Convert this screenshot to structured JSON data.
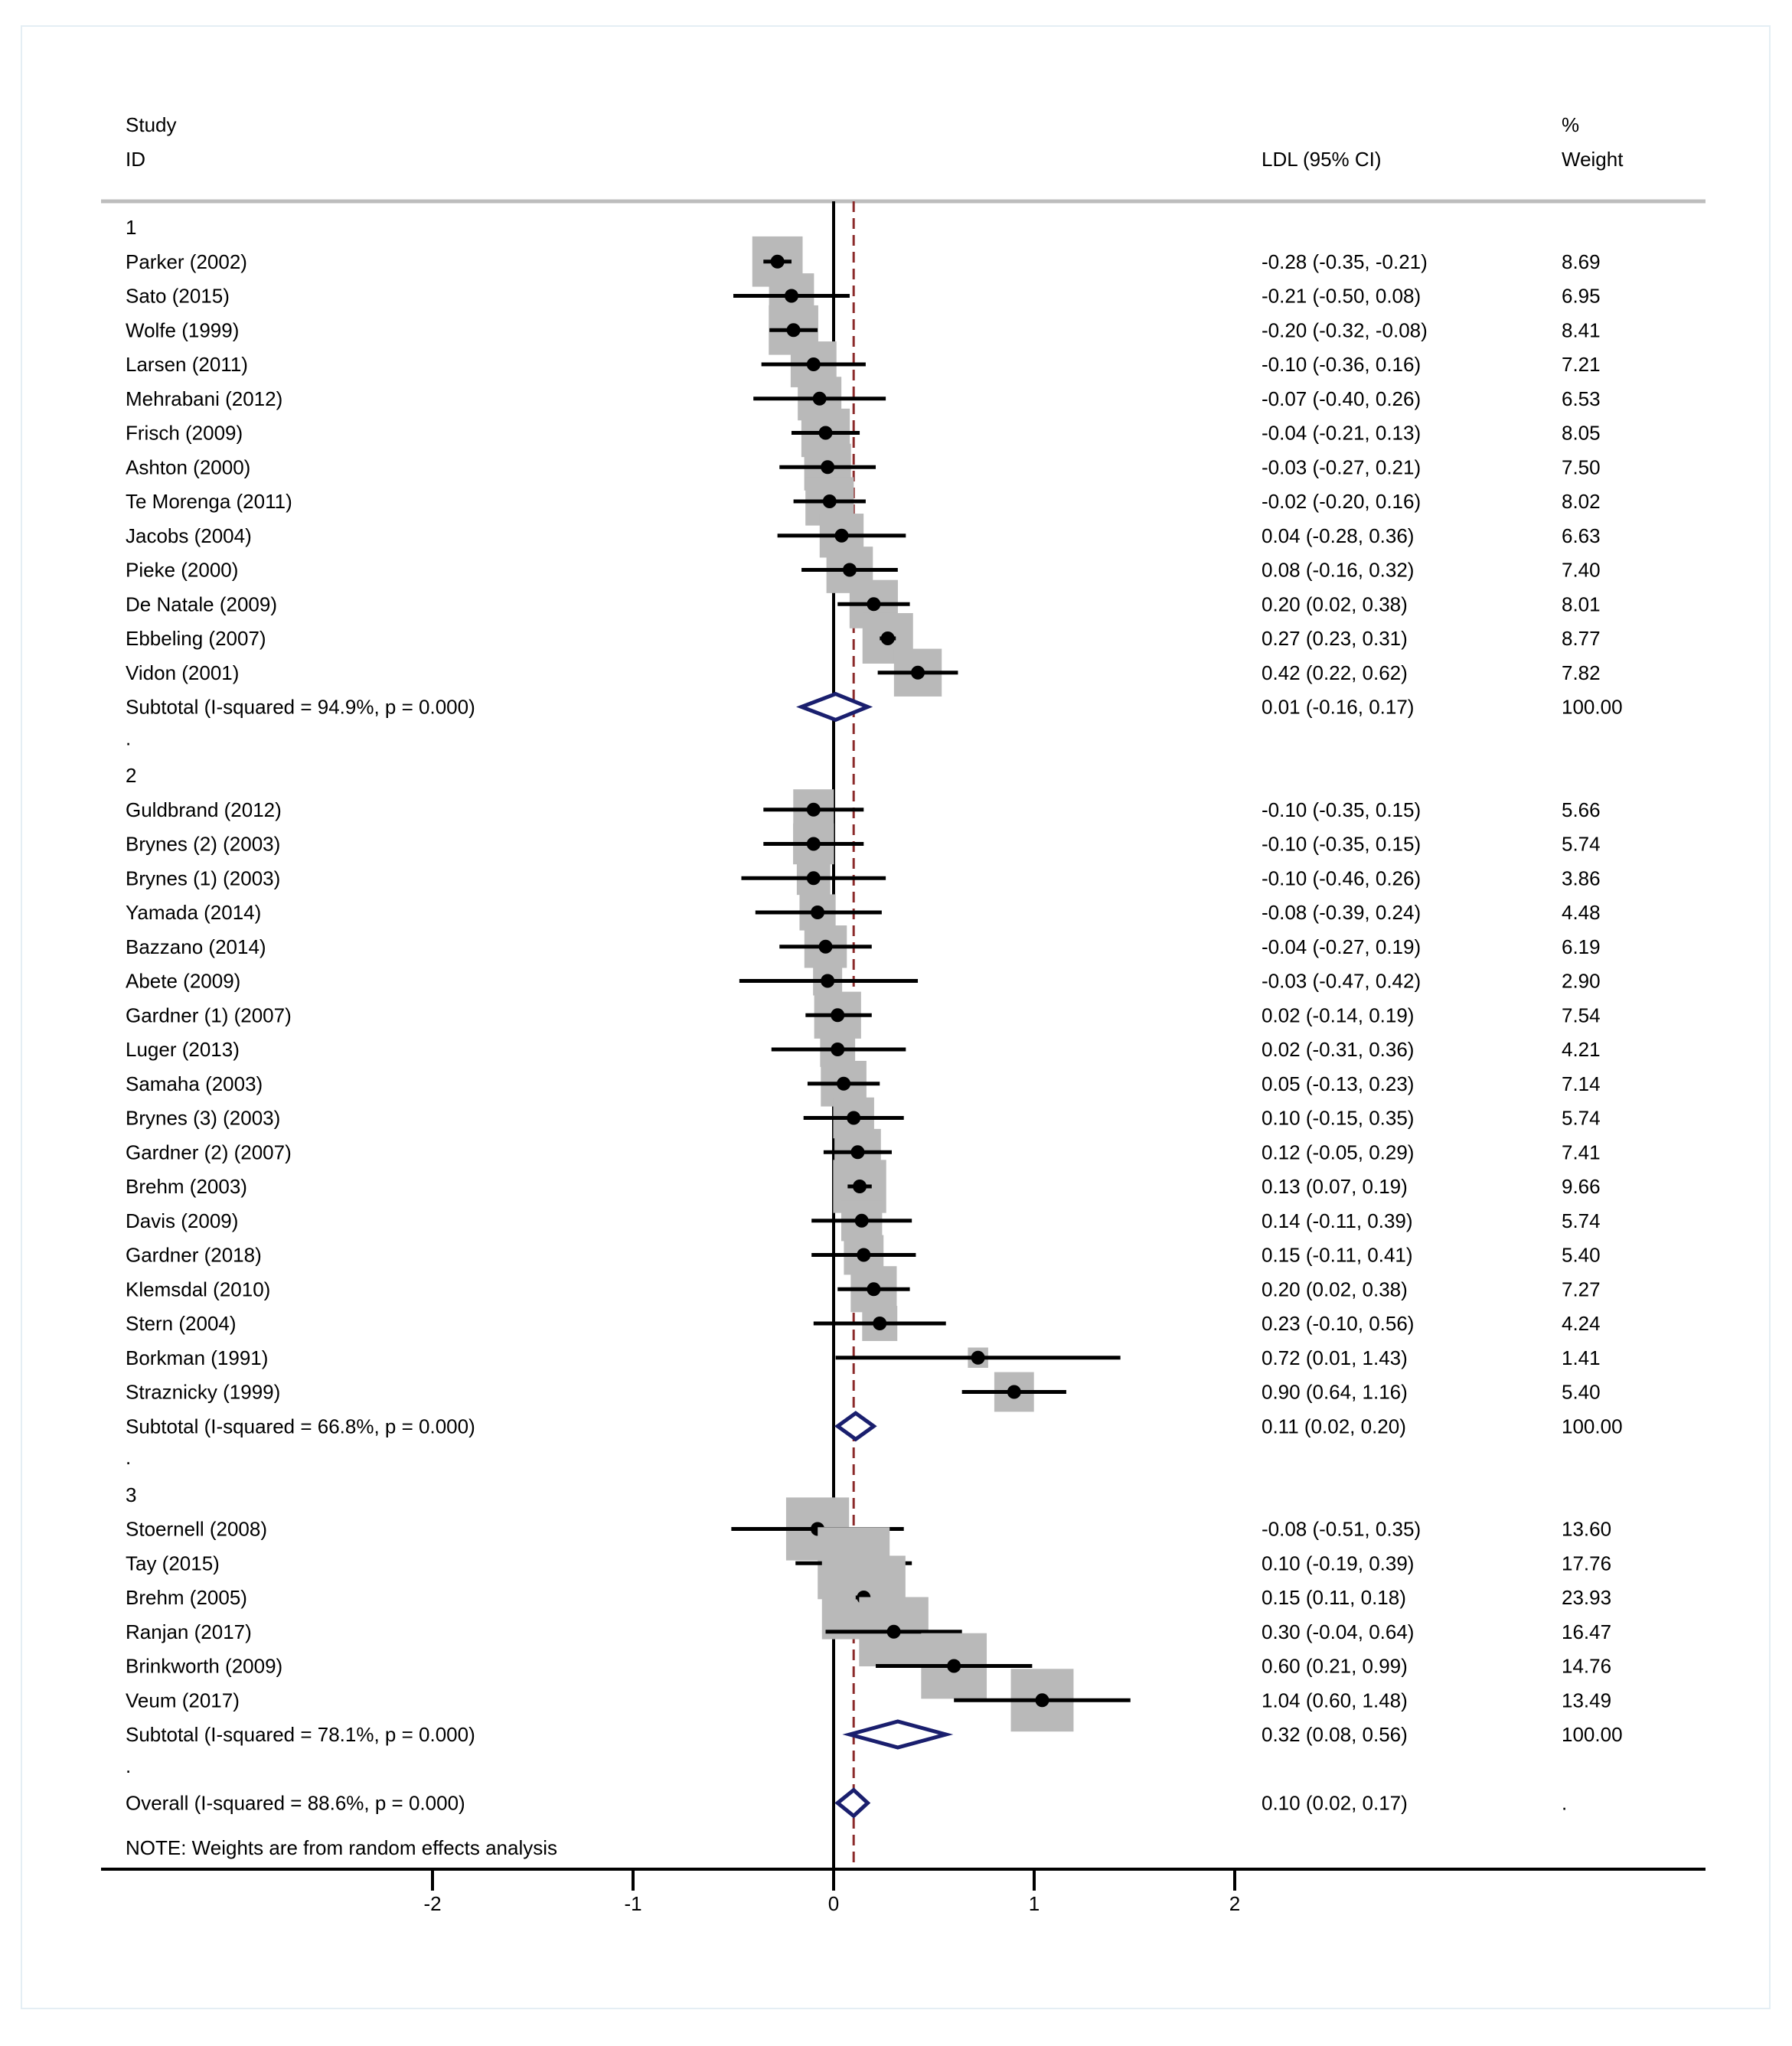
{
  "chart_data": {
    "type": "forest",
    "headers": {
      "study_line1": "Study",
      "study_line2": "ID",
      "estimate": "LDL (95% CI)",
      "weight_line1": "%",
      "weight_line2": "Weight"
    },
    "x_axis": {
      "range": [
        -2,
        2
      ],
      "ticks": [
        -2,
        -1,
        0,
        1,
        2
      ],
      "tick_labels": [
        "-2",
        "-1",
        "0",
        "1",
        "2"
      ]
    },
    "overall_reference": 0.1,
    "groups": [
      {
        "label": "1",
        "studies": [
          {
            "name": "Parker (2002)",
            "est": -0.28,
            "lo": -0.35,
            "hi": -0.21,
            "ci_text": "-0.28 (-0.35, -0.21)",
            "weight": 8.69,
            "weight_text": "8.69"
          },
          {
            "name": "Sato (2015)",
            "est": -0.21,
            "lo": -0.5,
            "hi": 0.08,
            "ci_text": "-0.21 (-0.50, 0.08)",
            "weight": 6.95,
            "weight_text": "6.95"
          },
          {
            "name": "Wolfe (1999)",
            "est": -0.2,
            "lo": -0.32,
            "hi": -0.08,
            "ci_text": "-0.20 (-0.32, -0.08)",
            "weight": 8.41,
            "weight_text": "8.41"
          },
          {
            "name": "Larsen (2011)",
            "est": -0.1,
            "lo": -0.36,
            "hi": 0.16,
            "ci_text": "-0.10 (-0.36, 0.16)",
            "weight": 7.21,
            "weight_text": "7.21"
          },
          {
            "name": "Mehrabani (2012)",
            "est": -0.07,
            "lo": -0.4,
            "hi": 0.26,
            "ci_text": "-0.07 (-0.40, 0.26)",
            "weight": 6.53,
            "weight_text": "6.53"
          },
          {
            "name": "Frisch (2009)",
            "est": -0.04,
            "lo": -0.21,
            "hi": 0.13,
            "ci_text": "-0.04 (-0.21, 0.13)",
            "weight": 8.05,
            "weight_text": "8.05"
          },
          {
            "name": "Ashton (2000)",
            "est": -0.03,
            "lo": -0.27,
            "hi": 0.21,
            "ci_text": "-0.03 (-0.27, 0.21)",
            "weight": 7.5,
            "weight_text": "7.50"
          },
          {
            "name": "Te Morenga (2011)",
            "est": -0.02,
            "lo": -0.2,
            "hi": 0.16,
            "ci_text": "-0.02 (-0.20, 0.16)",
            "weight": 8.02,
            "weight_text": "8.02"
          },
          {
            "name": "Jacobs (2004)",
            "est": 0.04,
            "lo": -0.28,
            "hi": 0.36,
            "ci_text": "0.04 (-0.28, 0.36)",
            "weight": 6.63,
            "weight_text": "6.63"
          },
          {
            "name": "Pieke (2000)",
            "est": 0.08,
            "lo": -0.16,
            "hi": 0.32,
            "ci_text": "0.08 (-0.16, 0.32)",
            "weight": 7.4,
            "weight_text": "7.40"
          },
          {
            "name": "De Natale (2009)",
            "est": 0.2,
            "lo": 0.02,
            "hi": 0.38,
            "ci_text": "0.20 (0.02, 0.38)",
            "weight": 8.01,
            "weight_text": "8.01"
          },
          {
            "name": "Ebbeling (2007)",
            "est": 0.27,
            "lo": 0.23,
            "hi": 0.31,
            "ci_text": "0.27 (0.23, 0.31)",
            "weight": 8.77,
            "weight_text": "8.77"
          },
          {
            "name": "Vidon (2001)",
            "est": 0.42,
            "lo": 0.22,
            "hi": 0.62,
            "ci_text": "0.42 (0.22, 0.62)",
            "weight": 7.82,
            "weight_text": "7.82"
          }
        ],
        "subtotal": {
          "name": "Subtotal  (I-squared = 94.9%, p = 0.000)",
          "est": 0.01,
          "lo": -0.16,
          "hi": 0.17,
          "ci_text": "0.01 (-0.16, 0.17)",
          "weight_text": "100.00"
        }
      },
      {
        "label": "2",
        "studies": [
          {
            "name": "Guldbrand (2012)",
            "est": -0.1,
            "lo": -0.35,
            "hi": 0.15,
            "ci_text": "-0.10 (-0.35, 0.15)",
            "weight": 5.66,
            "weight_text": "5.66"
          },
          {
            "name": "Brynes (2) (2003)",
            "est": -0.1,
            "lo": -0.35,
            "hi": 0.15,
            "ci_text": "-0.10 (-0.35, 0.15)",
            "weight": 5.74,
            "weight_text": "5.74"
          },
          {
            "name": "Brynes (1) (2003)",
            "est": -0.1,
            "lo": -0.46,
            "hi": 0.26,
            "ci_text": "-0.10 (-0.46, 0.26)",
            "weight": 3.86,
            "weight_text": "3.86"
          },
          {
            "name": "Yamada (2014)",
            "est": -0.08,
            "lo": -0.39,
            "hi": 0.24,
            "ci_text": "-0.08 (-0.39, 0.24)",
            "weight": 4.48,
            "weight_text": "4.48"
          },
          {
            "name": "Bazzano (2014)",
            "est": -0.04,
            "lo": -0.27,
            "hi": 0.19,
            "ci_text": "-0.04 (-0.27, 0.19)",
            "weight": 6.19,
            "weight_text": "6.19"
          },
          {
            "name": "Abete (2009)",
            "est": -0.03,
            "lo": -0.47,
            "hi": 0.42,
            "ci_text": "-0.03 (-0.47, 0.42)",
            "weight": 2.9,
            "weight_text": "2.90"
          },
          {
            "name": "Gardner (1) (2007)",
            "est": 0.02,
            "lo": -0.14,
            "hi": 0.19,
            "ci_text": "0.02 (-0.14, 0.19)",
            "weight": 7.54,
            "weight_text": "7.54"
          },
          {
            "name": "Luger (2013)",
            "est": 0.02,
            "lo": -0.31,
            "hi": 0.36,
            "ci_text": "0.02 (-0.31, 0.36)",
            "weight": 4.21,
            "weight_text": "4.21"
          },
          {
            "name": "Samaha (2003)",
            "est": 0.05,
            "lo": -0.13,
            "hi": 0.23,
            "ci_text": "0.05 (-0.13, 0.23)",
            "weight": 7.14,
            "weight_text": "7.14"
          },
          {
            "name": "Brynes (3) (2003)",
            "est": 0.1,
            "lo": -0.15,
            "hi": 0.35,
            "ci_text": "0.10 (-0.15, 0.35)",
            "weight": 5.74,
            "weight_text": "5.74"
          },
          {
            "name": "Gardner (2) (2007)",
            "est": 0.12,
            "lo": -0.05,
            "hi": 0.29,
            "ci_text": "0.12 (-0.05, 0.29)",
            "weight": 7.41,
            "weight_text": "7.41"
          },
          {
            "name": "Brehm (2003)",
            "est": 0.13,
            "lo": 0.07,
            "hi": 0.19,
            "ci_text": "0.13 (0.07, 0.19)",
            "weight": 9.66,
            "weight_text": "9.66"
          },
          {
            "name": "Davis (2009)",
            "est": 0.14,
            "lo": -0.11,
            "hi": 0.39,
            "ci_text": "0.14 (-0.11, 0.39)",
            "weight": 5.74,
            "weight_text": "5.74"
          },
          {
            "name": "Gardner (2018)",
            "est": 0.15,
            "lo": -0.11,
            "hi": 0.41,
            "ci_text": "0.15 (-0.11, 0.41)",
            "weight": 5.4,
            "weight_text": "5.40"
          },
          {
            "name": "Klemsdal (2010)",
            "est": 0.2,
            "lo": 0.02,
            "hi": 0.38,
            "ci_text": "0.20 (0.02, 0.38)",
            "weight": 7.27,
            "weight_text": "7.27"
          },
          {
            "name": "Stern (2004)",
            "est": 0.23,
            "lo": -0.1,
            "hi": 0.56,
            "ci_text": "0.23 (-0.10, 0.56)",
            "weight": 4.24,
            "weight_text": "4.24"
          },
          {
            "name": "Borkman (1991)",
            "est": 0.72,
            "lo": 0.01,
            "hi": 1.43,
            "ci_text": "0.72 (0.01, 1.43)",
            "weight": 1.41,
            "weight_text": "1.41"
          },
          {
            "name": "Straznicky (1999)",
            "est": 0.9,
            "lo": 0.64,
            "hi": 1.16,
            "ci_text": "0.90 (0.64, 1.16)",
            "weight": 5.4,
            "weight_text": "5.40"
          }
        ],
        "subtotal": {
          "name": "Subtotal  (I-squared = 66.8%, p = 0.000)",
          "est": 0.11,
          "lo": 0.02,
          "hi": 0.2,
          "ci_text": "0.11 (0.02, 0.20)",
          "weight_text": "100.00"
        }
      },
      {
        "label": "3",
        "studies": [
          {
            "name": "Stoernell (2008)",
            "est": -0.08,
            "lo": -0.51,
            "hi": 0.35,
            "ci_text": "-0.08 (-0.51, 0.35)",
            "weight": 13.6,
            "weight_text": "13.60"
          },
          {
            "name": "Tay (2015)",
            "est": 0.1,
            "lo": -0.19,
            "hi": 0.39,
            "ci_text": "0.10 (-0.19, 0.39)",
            "weight": 17.76,
            "weight_text": "17.76"
          },
          {
            "name": "Brehm (2005)",
            "est": 0.15,
            "lo": 0.11,
            "hi": 0.18,
            "ci_text": "0.15 (0.11, 0.18)",
            "weight": 23.93,
            "weight_text": "23.93"
          },
          {
            "name": "Ranjan (2017)",
            "est": 0.3,
            "lo": -0.04,
            "hi": 0.64,
            "ci_text": "0.30 (-0.04, 0.64)",
            "weight": 16.47,
            "weight_text": "16.47"
          },
          {
            "name": "Brinkworth (2009)",
            "est": 0.6,
            "lo": 0.21,
            "hi": 0.99,
            "ci_text": "0.60 (0.21, 0.99)",
            "weight": 14.76,
            "weight_text": "14.76"
          },
          {
            "name": "Veum (2017)",
            "est": 1.04,
            "lo": 0.6,
            "hi": 1.48,
            "ci_text": "1.04 (0.60, 1.48)",
            "weight": 13.49,
            "weight_text": "13.49"
          }
        ],
        "subtotal": {
          "name": "Subtotal  (I-squared = 78.1%, p = 0.000)",
          "est": 0.32,
          "lo": 0.08,
          "hi": 0.56,
          "ci_text": "0.32 (0.08, 0.56)",
          "weight_text": "100.00"
        }
      }
    ],
    "separator": ".",
    "overall": {
      "name": "Overall  (I-squared = 88.6%, p = 0.000)",
      "est": 0.1,
      "lo": 0.02,
      "hi": 0.17,
      "ci_text": "0.10 (0.02, 0.17)",
      "weight_text": "."
    },
    "note": "NOTE: Weights are from random effects analysis",
    "colors": {
      "box": "#b9b9b9",
      "diamond": "#1a1f6e",
      "reference_dash": "#8b2a2a",
      "line": "#000000",
      "header_rule": "#bdbdbd",
      "frame": "#e4eef4"
    }
  }
}
